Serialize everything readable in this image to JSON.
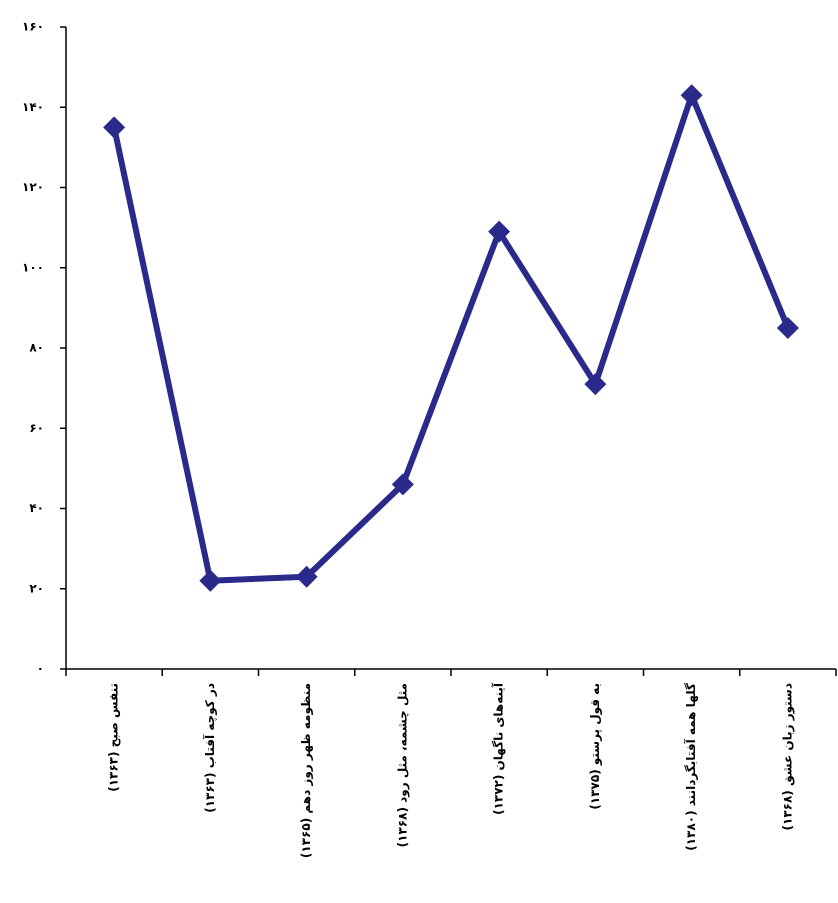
{
  "chart_data": {
    "type": "line",
    "categories": [
      "تنفس صبح (۱۳۶۳)",
      "در کوچه آفتاب (۱۳۶۳)",
      "منظومه ظهر روز دهم (۱۳۶۵)",
      "مثل چشمه، مثل رود (۱۳۶۸)",
      "آینه‌های ناگهان (۱۳۷۲)",
      "به قول پرستو (۱۳۷۵)",
      "گلها همه آفتابگردانند (۱۳۸۰)",
      "دستور زبان عشق (۱۳۶۸)"
    ],
    "values": [
      135,
      22,
      23,
      46,
      109,
      71,
      143,
      85
    ],
    "color": "#2a2a8a",
    "ylim": [
      0,
      160
    ],
    "yticks": [
      {
        "value": 0,
        "label": "۰"
      },
      {
        "value": 20,
        "label": "۲۰"
      },
      {
        "value": 40,
        "label": "۴۰"
      },
      {
        "value": 60,
        "label": "۶۰"
      },
      {
        "value": 80,
        "label": "۸۰"
      },
      {
        "value": 100,
        "label": "۱۰۰"
      },
      {
        "value": 120,
        "label": "۱۲۰"
      },
      {
        "value": 140,
        "label": "۱۴۰"
      },
      {
        "value": 160,
        "label": "۱۶۰"
      }
    ]
  }
}
